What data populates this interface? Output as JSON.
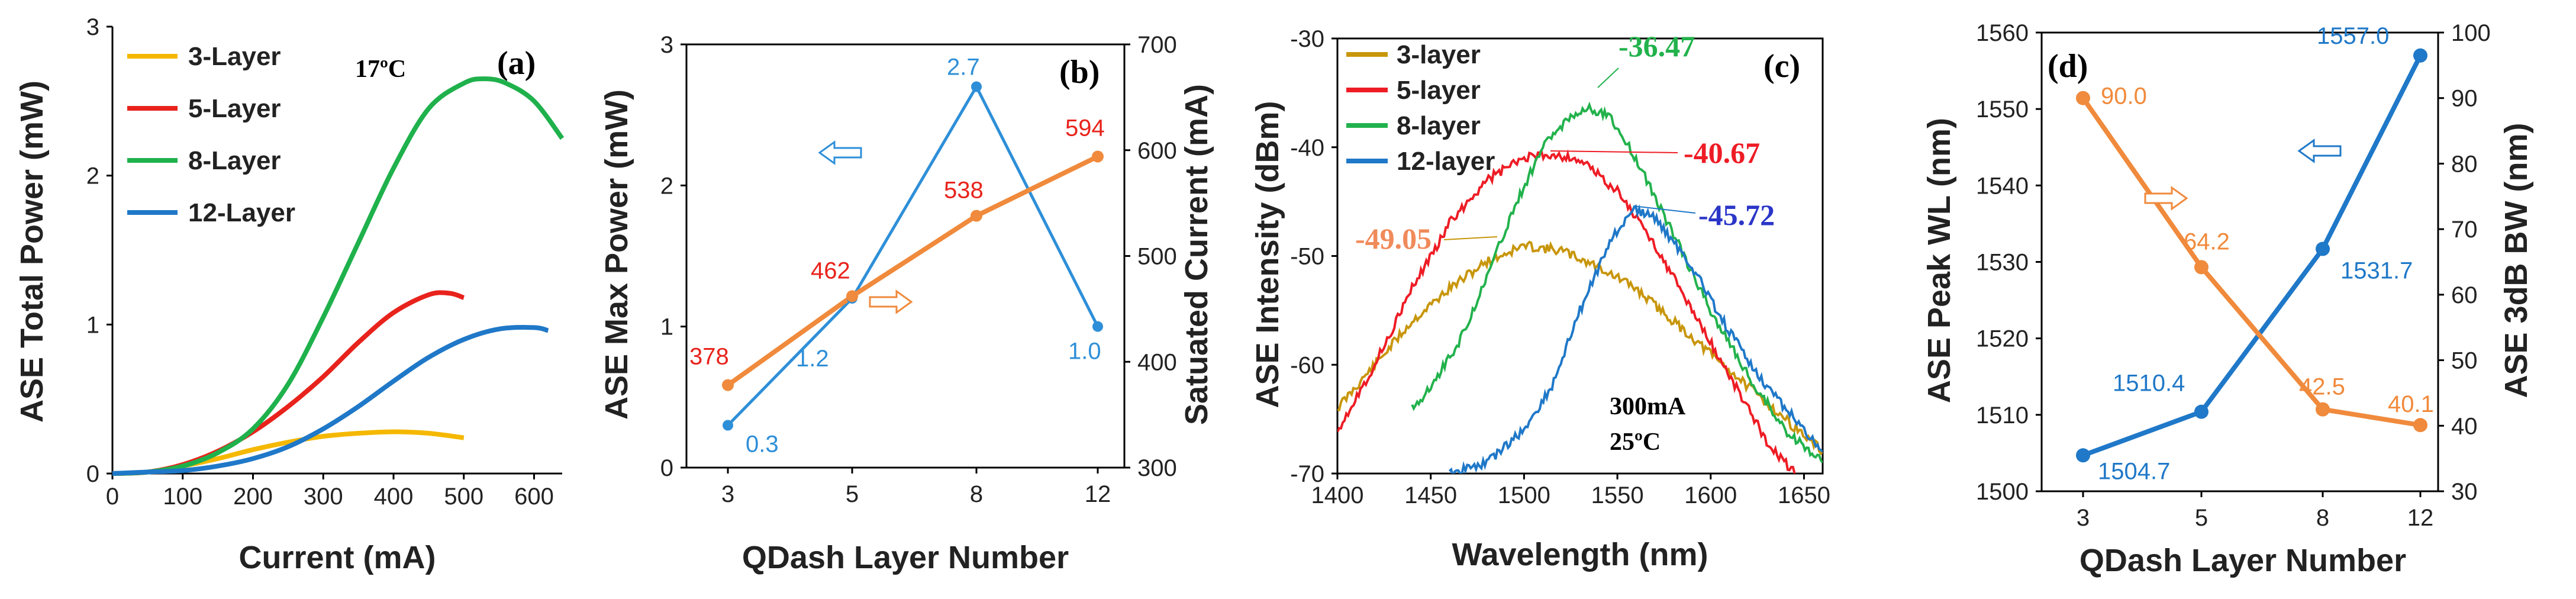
{
  "chart_data": [
    {
      "panel": "(a)",
      "type": "line",
      "annotation": "17ºC",
      "xlabel": "Current (mA)",
      "ylabel": "ASE Total Power (mW)",
      "xlim": [
        0,
        640
      ],
      "ylim": [
        0,
        3
      ],
      "xticks": [
        "0",
        "100",
        "200",
        "300",
        "400",
        "500",
        "600"
      ],
      "yticks": [
        "0",
        "1",
        "2",
        "3"
      ],
      "legend": "top-left",
      "series": [
        {
          "name": "3-Layer",
          "color": "#f5b800",
          "points": [
            [
              0,
              0
            ],
            [
              50,
              0.01
            ],
            [
              100,
              0.05
            ],
            [
              150,
              0.1
            ],
            [
              200,
              0.16
            ],
            [
              250,
              0.21
            ],
            [
              300,
              0.25
            ],
            [
              350,
              0.27
            ],
            [
              400,
              0.28
            ],
            [
              450,
              0.27
            ],
            [
              500,
              0.24
            ]
          ]
        },
        {
          "name": "5-Layer",
          "color": "#e8231c",
          "points": [
            [
              0,
              0
            ],
            [
              50,
              0.01
            ],
            [
              100,
              0.06
            ],
            [
              150,
              0.15
            ],
            [
              200,
              0.28
            ],
            [
              250,
              0.45
            ],
            [
              300,
              0.65
            ],
            [
              350,
              0.88
            ],
            [
              400,
              1.08
            ],
            [
              450,
              1.2
            ],
            [
              480,
              1.21
            ],
            [
              500,
              1.18
            ]
          ]
        },
        {
          "name": "8-Layer",
          "color": "#1fb14c",
          "points": [
            [
              0,
              0
            ],
            [
              50,
              0.01
            ],
            [
              100,
              0.05
            ],
            [
              150,
              0.14
            ],
            [
              200,
              0.3
            ],
            [
              250,
              0.6
            ],
            [
              300,
              1.05
            ],
            [
              350,
              1.55
            ],
            [
              400,
              2.05
            ],
            [
              450,
              2.45
            ],
            [
              500,
              2.62
            ],
            [
              530,
              2.65
            ],
            [
              560,
              2.62
            ],
            [
              600,
              2.5
            ],
            [
              640,
              2.25
            ]
          ]
        },
        {
          "name": "12-Layer",
          "color": "#1f78c8",
          "points": [
            [
              0,
              0
            ],
            [
              50,
              0.01
            ],
            [
              100,
              0.02
            ],
            [
              150,
              0.05
            ],
            [
              200,
              0.1
            ],
            [
              250,
              0.18
            ],
            [
              300,
              0.3
            ],
            [
              350,
              0.45
            ],
            [
              400,
              0.62
            ],
            [
              450,
              0.78
            ],
            [
              500,
              0.9
            ],
            [
              550,
              0.97
            ],
            [
              600,
              0.98
            ],
            [
              620,
              0.96
            ]
          ]
        }
      ]
    },
    {
      "panel": "(b)",
      "type": "line",
      "xlabel": "QDash Layer Number",
      "ylabel_left": "ASE Max Power (mW)",
      "ylabel_right": "Satuated Current (mA)",
      "categories": [
        "3",
        "5",
        "8",
        "12"
      ],
      "ylim_left": [
        0,
        3
      ],
      "ylim_right": [
        300,
        700
      ],
      "yticks_left": [
        "0",
        "1",
        "2",
        "3"
      ],
      "yticks_right": [
        "300",
        "400",
        "500",
        "600",
        "700"
      ],
      "series": [
        {
          "axis": "left",
          "color": "#2e8fd8",
          "values": [
            0.3,
            1.2,
            2.7,
            1.0
          ],
          "labels": [
            "0.3",
            "1.2",
            "2.7",
            "1.0"
          ]
        },
        {
          "axis": "right",
          "color": "#f08a3c",
          "values": [
            378,
            462,
            538,
            594
          ],
          "labels": [
            "378",
            "462",
            "538",
            "594"
          ]
        }
      ]
    },
    {
      "panel": "(c)",
      "type": "line",
      "annotation": [
        "300mA",
        "25ºC"
      ],
      "xlabel": "Wavelength (nm)",
      "ylabel": "ASE Intensity (dBm)",
      "xlim": [
        1400,
        1660
      ],
      "ylim": [
        -70,
        -30
      ],
      "xticks": [
        "1400",
        "1450",
        "1500",
        "1550",
        "1600",
        "1650"
      ],
      "yticks": [
        "-30",
        "-40",
        "-50",
        "-60",
        "-70"
      ],
      "legend": "top-left",
      "series": [
        {
          "name": "3-layer",
          "color": "#c8960c",
          "peak_label": "-49.05",
          "peak_color": "#f08a5a",
          "points": [
            [
              1400,
              -64
            ],
            [
              1420,
              -60
            ],
            [
              1440,
              -56
            ],
            [
              1460,
              -53
            ],
            [
              1480,
              -50.5
            ],
            [
              1500,
              -49.05
            ],
            [
              1520,
              -49.5
            ],
            [
              1540,
              -51
            ],
            [
              1560,
              -53
            ],
            [
              1580,
              -56
            ],
            [
              1600,
              -59
            ],
            [
              1620,
              -62
            ],
            [
              1640,
              -65
            ],
            [
              1660,
              -68
            ]
          ]
        },
        {
          "name": "5-layer",
          "color": "#ee1c25",
          "peak_label": "-40.67",
          "peak_color": "#ee1c25",
          "points": [
            [
              1400,
              -66
            ],
            [
              1420,
              -60
            ],
            [
              1440,
              -53
            ],
            [
              1460,
              -47
            ],
            [
              1480,
              -43
            ],
            [
              1500,
              -41
            ],
            [
              1515,
              -40.67
            ],
            [
              1530,
              -41.2
            ],
            [
              1550,
              -44
            ],
            [
              1570,
              -49
            ],
            [
              1590,
              -55
            ],
            [
              1610,
              -61
            ],
            [
              1630,
              -67
            ],
            [
              1645,
              -70
            ]
          ]
        },
        {
          "name": "8-layer",
          "color": "#22b24c",
          "peak_label": "-36.47",
          "peak_color": "#22b24c",
          "points": [
            [
              1440,
              -64
            ],
            [
              1450,
              -62
            ],
            [
              1465,
              -58
            ],
            [
              1480,
              -52
            ],
            [
              1495,
              -45.5
            ],
            [
              1510,
              -40
            ],
            [
              1525,
              -37
            ],
            [
              1535,
              -36.47
            ],
            [
              1545,
              -37
            ],
            [
              1560,
              -41
            ],
            [
              1580,
              -48
            ],
            [
              1600,
              -55
            ],
            [
              1620,
              -61
            ],
            [
              1640,
              -66
            ],
            [
              1660,
              -69
            ]
          ]
        },
        {
          "name": "12-layer",
          "color": "#1f78c8",
          "peak_label": "-45.72",
          "peak_color": "#2b36c8",
          "points": [
            [
              1460,
              -70
            ],
            [
              1480,
              -69
            ],
            [
              1500,
              -66
            ],
            [
              1515,
              -62
            ],
            [
              1530,
              -55
            ],
            [
              1545,
              -49
            ],
            [
              1558,
              -45.72
            ],
            [
              1570,
              -46.5
            ],
            [
              1590,
              -51
            ],
            [
              1610,
              -57
            ],
            [
              1630,
              -62
            ],
            [
              1650,
              -66
            ],
            [
              1660,
              -68
            ]
          ]
        }
      ]
    },
    {
      "panel": "(d)",
      "type": "line",
      "xlabel": "QDash Layer Number",
      "ylabel_left": "ASE Peak WL (nm)",
      "ylabel_right": "ASE 3dB BW (nm)",
      "categories": [
        "3",
        "5",
        "8",
        "12"
      ],
      "ylim_left": [
        1500,
        1560
      ],
      "ylim_right": [
        30,
        100
      ],
      "yticks_left": [
        "1500",
        "1510",
        "1520",
        "1530",
        "1540",
        "1550",
        "1560"
      ],
      "yticks_right": [
        "30",
        "40",
        "50",
        "60",
        "70",
        "80",
        "90",
        "100"
      ],
      "series": [
        {
          "axis": "left",
          "color": "#1f78c8",
          "values": [
            1504.7,
            1510.4,
            1531.7,
            1557.0
          ],
          "labels": [
            "1504.7",
            "1510.4",
            "1531.7",
            "1557.0"
          ]
        },
        {
          "axis": "right",
          "color": "#f08a3c",
          "values": [
            90.0,
            64.2,
            42.5,
            40.1
          ],
          "labels": [
            "90.0",
            "64.2",
            "42.5",
            "40.1"
          ]
        }
      ]
    }
  ]
}
